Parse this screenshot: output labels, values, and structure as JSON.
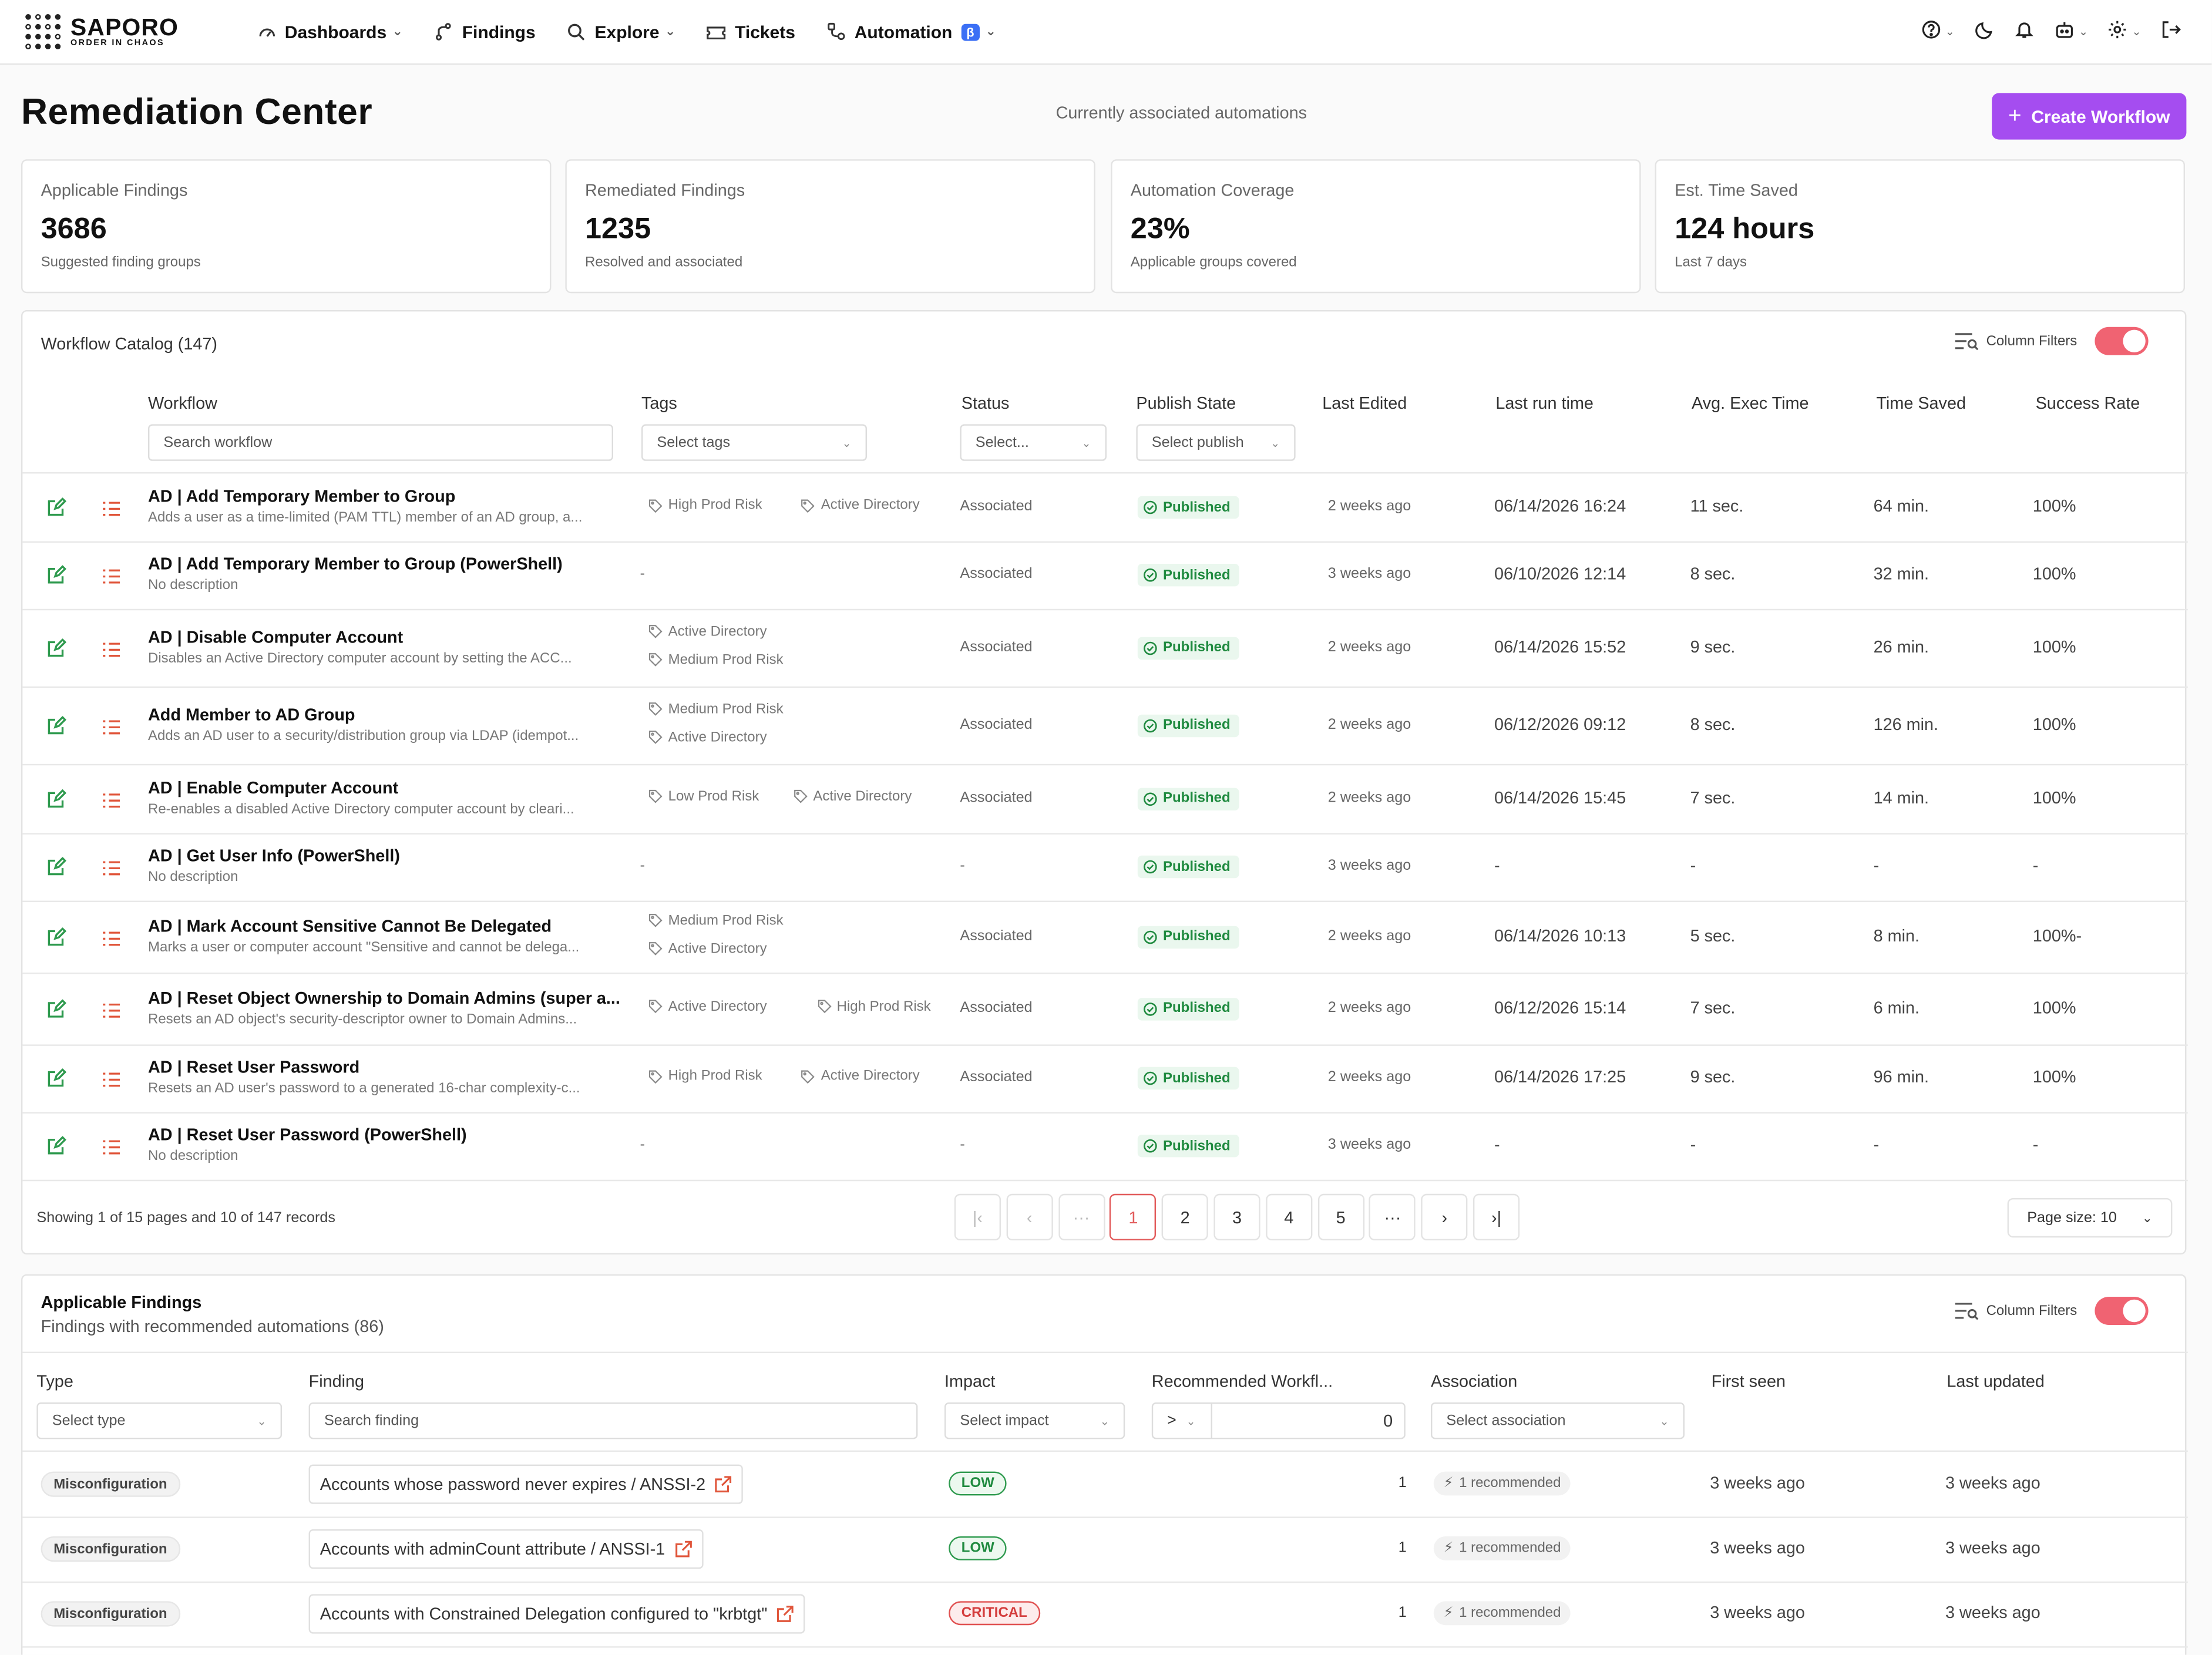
{
  "nav": {
    "brand": "SAPORO",
    "brand_tagline": "ORDER IN CHAOS",
    "items": [
      {
        "label": "Dashboards",
        "icon": "gauge-icon",
        "dropdown": true
      },
      {
        "label": "Findings",
        "icon": "branch-icon",
        "dropdown": false
      },
      {
        "label": "Explore",
        "icon": "search-icon",
        "dropdown": true
      },
      {
        "label": "Tickets",
        "icon": "ticket-icon",
        "dropdown": false
      },
      {
        "label": "Automation",
        "icon": "nodes-icon",
        "dropdown": true,
        "badge": "β"
      }
    ],
    "right_icons": [
      "help-icon",
      "moon-icon",
      "bell-icon",
      "robot-icon",
      "gear-icon",
      "logout-icon"
    ]
  },
  "header": {
    "title": "Remediation Center",
    "subtitle": "Currently associated automations",
    "create_button": "Create Workflow",
    "accent": "#a54df0"
  },
  "stats": [
    {
      "label": "Applicable Findings",
      "value": "3686",
      "hint": "Suggested finding groups"
    },
    {
      "label": "Remediated Findings",
      "value": "1235",
      "hint": "Resolved and associated"
    },
    {
      "label": "Automation Coverage",
      "value": "23%",
      "hint": "Applicable groups covered"
    },
    {
      "label": "Est. Time Saved",
      "value": "124 hours",
      "hint": "Last 7 days"
    }
  ],
  "catalog": {
    "title": "Workflow Catalog (147)",
    "column_filters_label": "Column Filters",
    "columns": {
      "workflow": "Workflow",
      "tags": "Tags",
      "status": "Status",
      "publish": "Publish State",
      "last_edited": "Last Edited",
      "last_run": "Last run time",
      "avg_exec": "Avg. Exec Time",
      "time_saved": "Time Saved",
      "success": "Success Rate"
    },
    "filters": {
      "workflow_placeholder": "Search workflow",
      "tags_placeholder": "Select tags",
      "status_placeholder": "Select...",
      "publish_placeholder": "Select publish"
    },
    "rows": [
      {
        "name": "AD | Add Temporary Member to Group",
        "desc": "Adds a user as a time-limited (PAM TTL) member of an AD group, a...",
        "tags": [
          "High Prod Risk",
          "Active Directory"
        ],
        "tag_layout": "inline",
        "status": "Associated",
        "publish": "Published",
        "edited": "2 weeks ago",
        "last_run": "06/14/2026 16:24",
        "avg": "11 sec.",
        "saved": "64 min.",
        "success": "100%"
      },
      {
        "name": "AD | Add Temporary Member to Group (PowerShell)",
        "desc": "No description",
        "tags": [],
        "tag_layout": "none",
        "status": "Associated",
        "publish": "Published",
        "edited": "3 weeks ago",
        "last_run": "06/10/2026 12:14",
        "avg": "8 sec.",
        "saved": "32 min.",
        "success": "100%"
      },
      {
        "name": "AD | Disable Computer Account",
        "desc": "Disables an Active Directory computer account by setting the ACC...",
        "tags": [
          "Active Directory",
          "Medium Prod Risk"
        ],
        "tag_layout": "stack",
        "status": "Associated",
        "publish": "Published",
        "edited": "2 weeks ago",
        "last_run": "06/14/2026 15:52",
        "avg": "9 sec.",
        "saved": "26 min.",
        "success": "100%"
      },
      {
        "name": "Add Member to AD Group",
        "desc": "Adds an AD user to a security/distribution group via LDAP (idempot...",
        "tags": [
          "Medium Prod Risk",
          "Active Directory"
        ],
        "tag_layout": "stack",
        "status": "Associated",
        "publish": "Published",
        "edited": "2 weeks ago",
        "last_run": "06/12/2026 09:12",
        "avg": "8 sec.",
        "saved": "126 min.",
        "success": "100%"
      },
      {
        "name": "AD | Enable Computer Account",
        "desc": "Re-enables a disabled Active Directory computer account by cleari...",
        "tags": [
          "Low Prod Risk",
          "Active Directory"
        ],
        "tag_layout": "inline",
        "status": "Associated",
        "publish": "Published",
        "edited": "2 weeks ago",
        "last_run": "06/14/2026 15:45",
        "avg": "7 sec.",
        "saved": "14 min.",
        "success": "100%"
      },
      {
        "name": "AD | Get User Info (PowerShell)",
        "desc": "No description",
        "tags": [],
        "tag_layout": "none",
        "status": "-",
        "publish": "Published",
        "edited": "3 weeks ago",
        "last_run": "-",
        "avg": "-",
        "saved": "-",
        "success": "-"
      },
      {
        "name": "AD | Mark Account Sensitive Cannot Be Delegated",
        "desc": "Marks a user or computer account \"Sensitive and cannot be delega...",
        "tags": [
          "Medium Prod Risk",
          "Active Directory"
        ],
        "tag_layout": "stack",
        "status": "Associated",
        "publish": "Published",
        "edited": "2 weeks ago",
        "last_run": "06/14/2026 10:13",
        "avg": "5 sec.",
        "saved": "8 min.",
        "success": "100%-"
      },
      {
        "name": "AD | Reset Object Ownership to Domain Admins (super a...",
        "desc": "Resets an AD object's security-descriptor owner to Domain Admins...",
        "tags": [
          "Active Directory",
          "High Prod Risk"
        ],
        "tag_layout": "inline",
        "status": "Associated",
        "publish": "Published",
        "edited": "2 weeks ago",
        "last_run": "06/12/2026 15:14",
        "avg": "7 sec.",
        "saved": "6 min.",
        "success": "100%"
      },
      {
        "name": "AD | Reset User Password",
        "desc": "Resets an AD user's password to a generated 16-char complexity-c...",
        "tags": [
          "High Prod Risk",
          "Active Directory"
        ],
        "tag_layout": "inline",
        "status": "Associated",
        "publish": "Published",
        "edited": "2 weeks ago",
        "last_run": "06/14/2026 17:25",
        "avg": "9 sec.",
        "saved": "96 min.",
        "success": "100%"
      },
      {
        "name": "AD | Reset User Password (PowerShell)",
        "desc": "No description",
        "tags": [],
        "tag_layout": "none",
        "status": "-",
        "publish": "Published",
        "edited": "3 weeks ago",
        "last_run": "-",
        "avg": "-",
        "saved": "-",
        "success": "-"
      }
    ],
    "empty_tags": "-",
    "pagination": {
      "showing": "Showing 1 of 15 pages and 10 of 147 records",
      "pages": [
        "1",
        "2",
        "3",
        "4",
        "5"
      ],
      "ellipsis": "···",
      "page_size": "Page size: 10"
    }
  },
  "findings": {
    "title": "Applicable Findings",
    "subtitle": "Findings with recommended automations (86)",
    "column_filters_label": "Column Filters",
    "columns": {
      "type": "Type",
      "finding": "Finding",
      "impact": "Impact",
      "recommended": "Recommended Workfl...",
      "association": "Association",
      "first_seen": "First seen",
      "last_updated": "Last updated"
    },
    "filters": {
      "type_placeholder": "Select type",
      "finding_placeholder": "Search finding",
      "impact_placeholder": "Select impact",
      "rec_operator": ">",
      "rec_value": "0",
      "association_placeholder": "Select association"
    },
    "rows": [
      {
        "type": "Misconfiguration",
        "finding": "Accounts whose password never expires / ANSSI-2",
        "impact": "LOW",
        "impact_level": "low",
        "count": "1",
        "association": "1 recommended",
        "first_seen": "3 weeks ago",
        "last_updated": "3 weeks ago"
      },
      {
        "type": "Misconfiguration",
        "finding": "Accounts with adminCount attribute / ANSSI-1",
        "impact": "LOW",
        "impact_level": "low",
        "count": "1",
        "association": "1 recommended",
        "first_seen": "3 weeks ago",
        "last_updated": "3 weeks ago"
      },
      {
        "type": "Misconfiguration",
        "finding": "Accounts with Constrained Delegation configured to \"krbtgt\"",
        "impact": "CRITICAL",
        "impact_level": "critical",
        "count": "1",
        "association": "1 recommended",
        "first_seen": "3 weeks ago",
        "last_updated": "3 weeks ago"
      }
    ]
  }
}
